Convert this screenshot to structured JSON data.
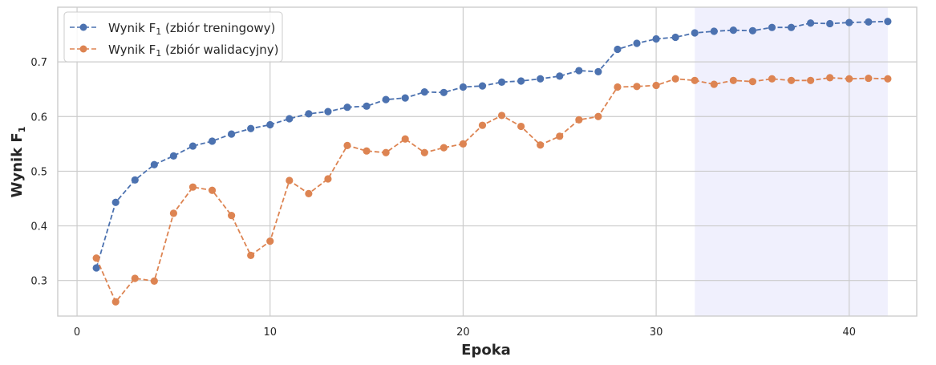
{
  "chart_data": {
    "type": "line",
    "xlabel": "Epoka",
    "ylabel": "Wynik F",
    "ylabel_sub": "1",
    "xlim": [
      -1,
      43.5
    ],
    "ylim": [
      0.235,
      0.8
    ],
    "xticks": [
      0,
      10,
      20,
      30,
      40
    ],
    "yticks": [
      0.3,
      0.4,
      0.5,
      0.6,
      0.7
    ],
    "xtick_labels": [
      "0",
      "10",
      "20",
      "30",
      "40"
    ],
    "ytick_labels": [
      "0.3",
      "0.4",
      "0.5",
      "0.6",
      "0.7"
    ],
    "grid": true,
    "legend_position": "top-left",
    "highlight_span": {
      "x": [
        32,
        42
      ],
      "color": "#e6e6fa"
    },
    "x": [
      1,
      2,
      3,
      4,
      5,
      6,
      7,
      8,
      9,
      10,
      11,
      12,
      13,
      14,
      15,
      16,
      17,
      18,
      19,
      20,
      21,
      22,
      23,
      24,
      25,
      26,
      27,
      28,
      29,
      30,
      31,
      32,
      33,
      34,
      35,
      36,
      37,
      38,
      39,
      40,
      41,
      42
    ],
    "series": [
      {
        "name": "Wynik F",
        "name_sub": "1",
        "name_suffix": " (zbiór treningowy)",
        "color": "#4c72b0",
        "values": [
          0.323,
          0.443,
          0.484,
          0.512,
          0.528,
          0.546,
          0.555,
          0.568,
          0.578,
          0.585,
          0.596,
          0.605,
          0.609,
          0.617,
          0.619,
          0.631,
          0.634,
          0.645,
          0.644,
          0.654,
          0.656,
          0.663,
          0.665,
          0.669,
          0.674,
          0.684,
          0.682,
          0.723,
          0.734,
          0.742,
          0.745,
          0.753,
          0.756,
          0.758,
          0.757,
          0.763,
          0.763,
          0.771,
          0.77,
          0.772,
          0.773,
          0.774
        ]
      },
      {
        "name": "Wynik F",
        "name_sub": "1",
        "name_suffix": " (zbiór walidacyjny)",
        "color": "#dd8452",
        "values": [
          0.341,
          0.261,
          0.304,
          0.299,
          0.423,
          0.471,
          0.465,
          0.419,
          0.346,
          0.372,
          0.483,
          0.459,
          0.486,
          0.547,
          0.537,
          0.534,
          0.559,
          0.534,
          0.543,
          0.55,
          0.584,
          0.602,
          0.582,
          0.548,
          0.564,
          0.594,
          0.6,
          0.654,
          0.655,
          0.657,
          0.669,
          0.666,
          0.659,
          0.666,
          0.664,
          0.669,
          0.666,
          0.666,
          0.671,
          0.669,
          0.67,
          0.669
        ]
      }
    ]
  },
  "colors": {
    "grid": "#cccccc",
    "frame": "#cccccc",
    "text": "#262626"
  }
}
